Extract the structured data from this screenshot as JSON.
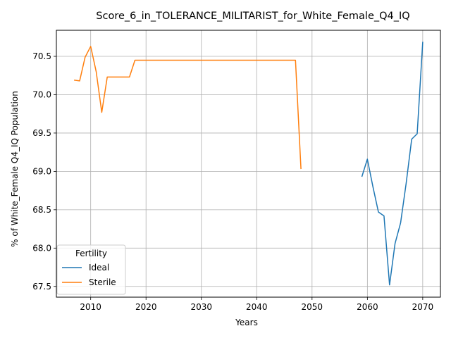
{
  "chart_data": {
    "type": "line",
    "title": "Score_6_in_TOLERANCE_MILITARIST_for_White_Female_Q4_IQ",
    "xlabel": "Years",
    "ylabel": "% of White_Female Q4_IQ Population",
    "xlim": [
      2003.8,
      2073.2
    ],
    "ylim": [
      67.36,
      70.84
    ],
    "xticks": [
      2010,
      2020,
      2030,
      2040,
      2050,
      2060,
      2070
    ],
    "yticks": [
      67.5,
      68.0,
      68.5,
      69.0,
      69.5,
      70.0,
      70.5
    ],
    "ytick_labels": [
      "67.5",
      "68.0",
      "68.5",
      "69.0",
      "69.5",
      "70.0",
      "70.5"
    ],
    "grid": true,
    "legend": {
      "title": "Fertility",
      "position": "lower-left"
    },
    "series": [
      {
        "name": "Ideal",
        "color": "#1f77b4",
        "x": [
          2059,
          2060,
          2061,
          2062,
          2063,
          2064,
          2065,
          2066,
          2067,
          2068,
          2069,
          2070
        ],
        "y": [
          68.93,
          69.16,
          68.8,
          68.47,
          68.42,
          67.52,
          68.06,
          68.33,
          68.84,
          69.42,
          69.49,
          70.69
        ]
      },
      {
        "name": "Sterile",
        "color": "#ff7f0e",
        "x": [
          2007,
          2008,
          2009,
          2010,
          2011,
          2012,
          2013,
          2014,
          2015,
          2016,
          2017,
          2018,
          2019,
          2020,
          2025,
          2030,
          2035,
          2040,
          2045,
          2047,
          2048
        ],
        "y": [
          70.19,
          70.18,
          70.49,
          70.63,
          70.3,
          69.77,
          70.23,
          70.23,
          70.23,
          70.23,
          70.23,
          70.45,
          70.45,
          70.45,
          70.45,
          70.45,
          70.45,
          70.45,
          70.45,
          70.45,
          69.03
        ]
      }
    ]
  }
}
